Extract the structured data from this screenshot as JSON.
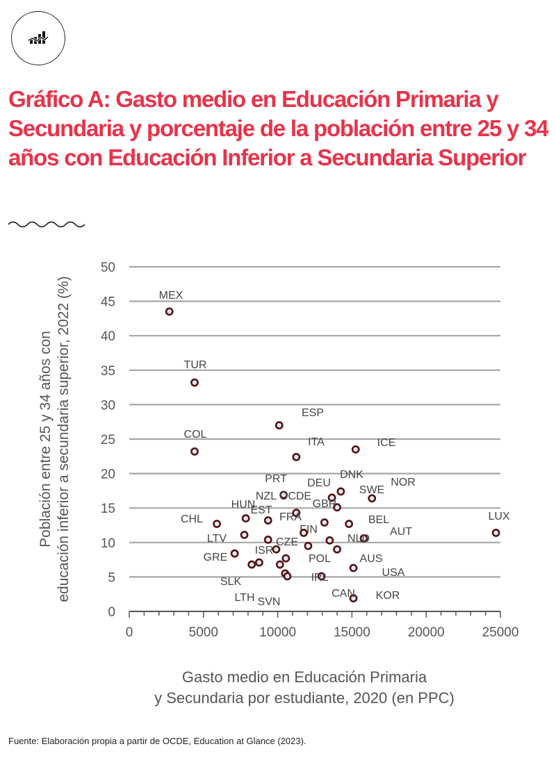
{
  "header": {
    "logo_icon": "bar-line-chart-icon",
    "title": "Gráfico A: Gasto medio en Educación Primaria y Secundaria y porcentaje de la población entre 25 y 34 años con Educación Inferior a  Secundaria Superior"
  },
  "colors": {
    "title": "#e8334a",
    "marker_edge": "#5a1010",
    "marker_fill": "#d6ecf8",
    "grid": "#a6a6a6"
  },
  "chart_data": {
    "type": "scatter",
    "xlabel": "Gasto medio en Educación Primaria y Secundaria por estudiante, 2020 (en PPC)",
    "ylabel": "Población entre 25 y 34 años con educación inferior a secundaria superior, 2022 (%)",
    "xlim": [
      0,
      25000
    ],
    "ylim": [
      0,
      50
    ],
    "x_ticks": [
      "0",
      "5000",
      "10000",
      "15000",
      "20000",
      "25000"
    ],
    "y_ticks": [
      "0",
      "5",
      "10",
      "15",
      "20",
      "25",
      "30",
      "35",
      "40",
      "45",
      "50"
    ],
    "grid": "horizontal",
    "points": [
      {
        "label": "MEX",
        "x": 2700,
        "y": 43.5
      },
      {
        "label": "TUR",
        "x": 4400,
        "y": 33.2
      },
      {
        "label": "COL",
        "x": 4400,
        "y": 23.2
      },
      {
        "label": "ESP",
        "x": 10100,
        "y": 27.0
      },
      {
        "label": "ITA",
        "x": 11250,
        "y": 22.4
      },
      {
        "label": "ICE",
        "x": 15250,
        "y": 23.5
      },
      {
        "label": "LUX",
        "x": 24700,
        "y": 11.4
      },
      {
        "label": "PRT",
        "x": 10400,
        "y": 16.9
      },
      {
        "label": "DEU",
        "x": 13650,
        "y": 16.5
      },
      {
        "label": "DNK",
        "x": 14250,
        "y": 17.4
      },
      {
        "label": "NOR",
        "x": 16350,
        "y": 16.4
      },
      {
        "label": "GBR",
        "x": 14000,
        "y": 15.1
      },
      {
        "label": "OCDE",
        "x": 11250,
        "y": 14.3
      },
      {
        "label": "HUN",
        "x": 7850,
        "y": 13.5
      },
      {
        "label": "EST",
        "x": 9350,
        "y": 13.2
      },
      {
        "label": "CHL",
        "x": 5900,
        "y": 12.7
      },
      {
        "label": "FIN",
        "x": 13150,
        "y": 12.9
      },
      {
        "label": "BEL",
        "x": 14800,
        "y": 12.7
      },
      {
        "label": "FRA",
        "x": 11750,
        "y": 11.4
      },
      {
        "label": "LTV",
        "x": 7750,
        "y": 11.1
      },
      {
        "label": "AUT",
        "x": 15800,
        "y": 10.6
      },
      {
        "label": "NLD",
        "x": 13500,
        "y": 10.3
      },
      {
        "label": "CZE",
        "x": 9350,
        "y": 10.4
      },
      {
        "label": "POL",
        "x": 12050,
        "y": 9.5
      },
      {
        "label": "SWE",
        "x": 14000,
        "y": 9.0
      },
      {
        "label": "ISR",
        "x": 9900,
        "y": 9.0
      },
      {
        "label": "GRE",
        "x": 7100,
        "y": 8.4
      },
      {
        "label": "NZL",
        "x": 10550,
        "y": 7.7
      },
      {
        "label": "SLK",
        "x": 8250,
        "y": 6.8
      },
      {
        "label": "LTH",
        "x": 8750,
        "y": 7.1
      },
      {
        "label": "SVN",
        "x": 10150,
        "y": 6.8
      },
      {
        "label": "KOR",
        "x": 10500,
        "y": 5.5
      },
      {
        "label": "USA",
        "x": 10650,
        "y": 5.1
      },
      {
        "label": "IRL",
        "x": 12950,
        "y": 5.1
      },
      {
        "label": "AUS",
        "x": 15100,
        "y": 6.3
      },
      {
        "label": "CAN",
        "x": 15100,
        "y": 1.9
      }
    ]
  },
  "footer": {
    "source": "Fuente:  Elaboración propia a partir de OCDE, Education at Glance (2023)."
  }
}
